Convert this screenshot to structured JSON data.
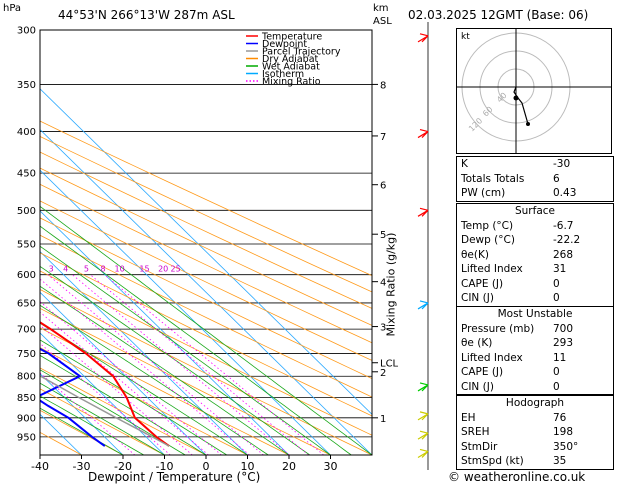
{
  "header": {
    "hpa_unit": "hPa",
    "location": "44°53'N  266°13'W  287m  ASL",
    "km_unit": "km",
    "asl_unit": "ASL",
    "datetime": "02.03.2025  12GMT  (Base: 06)"
  },
  "legend": [
    {
      "label": "Temperature",
      "color": "#ff0000",
      "style": "solid"
    },
    {
      "label": "Dewpoint",
      "color": "#0000ff",
      "style": "solid"
    },
    {
      "label": "Parcel Trajectory",
      "color": "#999999",
      "style": "solid"
    },
    {
      "label": "Dry Adiabat",
      "color": "#ff8c00",
      "style": "solid"
    },
    {
      "label": "Wet Adiabat",
      "color": "#00aa00",
      "style": "solid"
    },
    {
      "label": "Isotherm",
      "color": "#00aaff",
      "style": "solid"
    },
    {
      "label": "Mixing Ratio",
      "color": "#ff00ff",
      "style": "dotted"
    }
  ],
  "chart_data": {
    "type": "line",
    "xlabel": "Dewpoint / Temperature (°C)",
    "ylabel": "hPa",
    "right_axis_label": "Mixing Ratio (g/kg)",
    "pressure_levels": [
      300,
      350,
      400,
      450,
      500,
      550,
      600,
      650,
      700,
      750,
      800,
      850,
      900,
      950
    ],
    "x_ticks": [
      -40,
      -30,
      -20,
      -10,
      0,
      10,
      20,
      30
    ],
    "xlim": [
      -40,
      40
    ],
    "ylim": [
      1000,
      300
    ],
    "y_scale": "log",
    "km_ticks": [
      {
        "label": "8",
        "p": 350
      },
      {
        "label": "7",
        "p": 405
      },
      {
        "label": "6",
        "p": 465
      },
      {
        "label": "5",
        "p": 535
      },
      {
        "label": "4",
        "p": 612
      },
      {
        "label": "3",
        "p": 695
      },
      {
        "label": "LCL",
        "p": 770
      },
      {
        "label": "2",
        "p": 790
      },
      {
        "label": "1",
        "p": 900
      }
    ],
    "mixing_ratio_labels": [
      {
        "label": "1",
        "x": -7
      },
      {
        "label": "2",
        "x": 1.5
      },
      {
        "label": "3",
        "x": 7
      },
      {
        "label": "4",
        "x": 10.5
      },
      {
        "label": "5",
        "x": 15.5
      },
      {
        "label": "8",
        "x": 19.5
      },
      {
        "label": "10",
        "x": 23.5
      },
      {
        "label": "15",
        "x": 29.5
      },
      {
        "label": "20",
        "x": 34
      },
      {
        "label": "25",
        "x": 37
      }
    ],
    "series": [
      {
        "name": "Temperature",
        "color": "#ff0000",
        "points": [
          [
            975,
            -6.7
          ],
          [
            950,
            -7.5
          ],
          [
            900,
            -8
          ],
          [
            850,
            -5
          ],
          [
            800,
            -3
          ],
          [
            750,
            -4
          ],
          [
            700,
            -6.5
          ],
          [
            650,
            -10
          ],
          [
            600,
            -14
          ],
          [
            550,
            -19
          ],
          [
            500,
            -24.5
          ],
          [
            450,
            -30
          ],
          [
            400,
            -36
          ],
          [
            350,
            -42
          ],
          [
            300,
            -48
          ]
        ]
      },
      {
        "name": "Dewpoint",
        "color": "#0000ff",
        "points": [
          [
            975,
            -22.2
          ],
          [
            950,
            -23
          ],
          [
            900,
            -24
          ],
          [
            870,
            -26
          ],
          [
            850,
            -27
          ],
          [
            800,
            -11
          ],
          [
            750,
            -13
          ],
          [
            700,
            -18
          ],
          [
            650,
            -22
          ],
          [
            600,
            -28
          ],
          [
            550,
            -22
          ],
          [
            500,
            -25
          ],
          [
            450,
            -32
          ],
          [
            400,
            -37
          ],
          [
            350,
            -45
          ],
          [
            300,
            -53
          ]
        ]
      },
      {
        "name": "Parcel",
        "color": "#999999",
        "points": [
          [
            975,
            -6.7
          ],
          [
            950,
            -8.5
          ],
          [
            900,
            -12.5
          ],
          [
            850,
            -16.5
          ],
          [
            800,
            -20.5
          ],
          [
            775,
            -22.5
          ],
          [
            750,
            -24.5
          ],
          [
            700,
            -28.5
          ],
          [
            650,
            -32.5
          ],
          [
            600,
            -37
          ],
          [
            550,
            -42
          ],
          [
            500,
            -47.5
          ],
          [
            450,
            -53.5
          ],
          [
            400,
            -60
          ]
        ]
      }
    ]
  },
  "hodograph": {
    "unit_label": "kt",
    "rings": [
      "40",
      "60",
      "120"
    ]
  },
  "indices": [
    {
      "label": "K",
      "value": "-30"
    },
    {
      "label": "Totals Totals",
      "value": "6"
    },
    {
      "label": "PW (cm)",
      "value": "0.43"
    }
  ],
  "surface": {
    "title": "Surface",
    "rows": [
      {
        "label": "Temp (°C)",
        "value": "-6.7"
      },
      {
        "label": "Dewp (°C)",
        "value": "-22.2"
      },
      {
        "label": "θe(K)",
        "value": "268"
      },
      {
        "label": "Lifted Index",
        "value": "31"
      },
      {
        "label": "CAPE (J)",
        "value": "0"
      },
      {
        "label": "CIN (J)",
        "value": "0"
      }
    ]
  },
  "most_unstable": {
    "title": "Most Unstable",
    "rows": [
      {
        "label": "Pressure (mb)",
        "value": "700"
      },
      {
        "label": "θe (K)",
        "value": "293"
      },
      {
        "label": "Lifted Index",
        "value": "11"
      },
      {
        "label": "CAPE (J)",
        "value": "0"
      },
      {
        "label": "CIN (J)",
        "value": "0"
      }
    ]
  },
  "hodograph_table": {
    "title": "Hodograph",
    "rows": [
      {
        "label": "EH",
        "value": "76"
      },
      {
        "label": "SREH",
        "value": "198"
      },
      {
        "label": "StmDir",
        "value": "350°"
      },
      {
        "label": "StmSpd (kt)",
        "value": "35"
      }
    ]
  },
  "footer": {
    "copyright": "© weatheronline.co.uk"
  }
}
